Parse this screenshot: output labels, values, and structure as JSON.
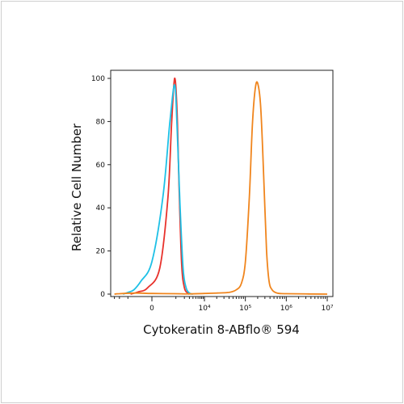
{
  "chart_data": {
    "type": "line",
    "title": "",
    "xlabel": "Cytokeratin 8-ABflo® 594",
    "ylabel": "Relative Cell Number",
    "x_scale": "biexponential",
    "x_tick_labels": [
      "0",
      "10⁴",
      "10⁵",
      "10⁶",
      "10⁷"
    ],
    "x_tick_values": [
      0,
      10000,
      100000,
      1000000,
      10000000
    ],
    "y_ticks": [
      0,
      20,
      40,
      60,
      80,
      100
    ],
    "ylim": [
      0,
      100
    ],
    "grid": false,
    "legend": "none",
    "series": [
      {
        "color": "#e8322c",
        "points": [
          [
            -800,
            0
          ],
          [
            -400,
            1
          ],
          [
            -100,
            3
          ],
          [
            200,
            12
          ],
          [
            500,
            45
          ],
          [
            700,
            80
          ],
          [
            900,
            100
          ],
          [
            1100,
            85
          ],
          [
            1300,
            50
          ],
          [
            1600,
            14
          ],
          [
            2000,
            3
          ],
          [
            2600,
            0.5
          ],
          [
            3000,
            0
          ]
        ]
      },
      {
        "color": "#1ec0e6",
        "points": [
          [
            -1500,
            0
          ],
          [
            -1000,
            0.8
          ],
          [
            -600,
            2
          ],
          [
            -300,
            6
          ],
          [
            0,
            15
          ],
          [
            300,
            45
          ],
          [
            600,
            80
          ],
          [
            900,
            97
          ],
          [
            1100,
            78
          ],
          [
            1400,
            42
          ],
          [
            1800,
            12
          ],
          [
            2300,
            3
          ],
          [
            3000,
            0.5
          ],
          [
            4000,
            0
          ]
        ]
      },
      {
        "color": "#f0851d",
        "points": [
          [
            -3000,
            0
          ],
          [
            -2000,
            0.2
          ],
          [
            -500,
            0.5
          ],
          [
            0,
            0.3
          ],
          [
            1000,
            0.2
          ],
          [
            3000,
            0.1
          ],
          [
            10000,
            0.3
          ],
          [
            20000,
            0.5
          ],
          [
            40000,
            0.8
          ],
          [
            60000,
            2
          ],
          [
            80000,
            5
          ],
          [
            100000,
            15
          ],
          [
            125000,
            45
          ],
          [
            150000,
            80
          ],
          [
            180000,
            97
          ],
          [
            210000,
            96
          ],
          [
            240000,
            85
          ],
          [
            280000,
            55
          ],
          [
            330000,
            20
          ],
          [
            380000,
            6
          ],
          [
            450000,
            2
          ],
          [
            600000,
            0.5
          ],
          [
            1000000,
            0.2
          ],
          [
            10000000,
            0
          ]
        ]
      }
    ]
  }
}
